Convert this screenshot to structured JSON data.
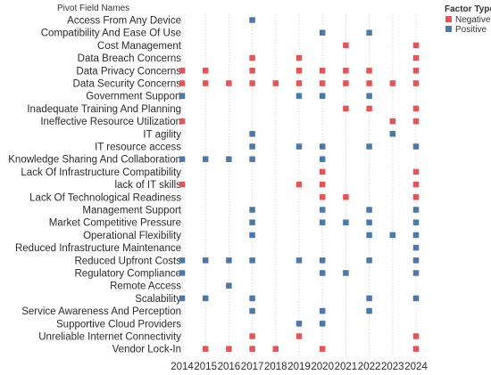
{
  "chart_data": {
    "type": "scatter",
    "row_header": "Pivot Field Names",
    "legend": {
      "title": "Factor Type",
      "position": "top-right",
      "entries": [
        {
          "label": "Negative",
          "color": "#e05759"
        },
        {
          "label": "Positive",
          "color": "#4e79a7"
        }
      ]
    },
    "x": [
      2014,
      2015,
      2016,
      2017,
      2018,
      2019,
      2020,
      2021,
      2022,
      2023,
      2024
    ],
    "categories": [
      "Access From Any Device",
      "Compatibility And Ease Of Use",
      "Cost Management",
      "Data Breach Concerns",
      "Data Privacy Concerns",
      "Data Security Concerns",
      "Government Support",
      "Inadequate Training And Planning",
      "Ineffective Resource Utilization",
      "IT agility",
      "IT resource access",
      "Knowledge Sharing And Collaboration",
      "Lack Of Infrastructure Compatibility",
      "lack of  IT skills",
      "Lack Of Technological Readiness",
      "Management Support",
      "Market Competitive Pressure",
      "Operational Flexibility",
      "Reduced Infrastructure Maintenance",
      "Reduced Upfront Costs",
      "Regulatory Compliance",
      "Remote Access",
      "Scalability",
      "Service Awareness And Perception",
      "Supportive Cloud Providers",
      "Unreliable Internet Connectivity",
      "Vendor Lock-In"
    ],
    "series": [
      {
        "name": "Negative",
        "color": "#e05759",
        "points": [
          {
            "y": "Cost Management",
            "x": [
              2021,
              2024
            ]
          },
          {
            "y": "Data Breach Concerns",
            "x": [
              2017,
              2019,
              2024
            ]
          },
          {
            "y": "Data Privacy Concerns",
            "x": [
              2014,
              2015,
              2017,
              2019,
              2020,
              2021,
              2022,
              2024
            ]
          },
          {
            "y": "Data Security Concerns",
            "x": [
              2014,
              2015,
              2016,
              2017,
              2018,
              2019,
              2020,
              2021,
              2022,
              2023,
              2024
            ]
          },
          {
            "y": "Inadequate Training And Planning",
            "x": [
              2021,
              2022,
              2024
            ]
          },
          {
            "y": "Ineffective Resource Utilization",
            "x": [
              2014,
              2023,
              2024
            ]
          },
          {
            "y": "Lack Of Infrastructure Compatibility",
            "x": [
              2020,
              2024
            ]
          },
          {
            "y": "lack of  IT skills",
            "x": [
              2014,
              2019,
              2020,
              2024
            ]
          },
          {
            "y": "Lack Of Technological Readiness",
            "x": [
              2020,
              2021,
              2024
            ]
          },
          {
            "y": "Unreliable Internet Connectivity",
            "x": [
              2017,
              2019,
              2024
            ]
          },
          {
            "y": "Vendor Lock-In",
            "x": [
              2015,
              2016,
              2017,
              2018,
              2020,
              2024
            ]
          }
        ]
      },
      {
        "name": "Positive",
        "color": "#4e79a7",
        "points": [
          {
            "y": "Access From Any Device",
            "x": [
              2017
            ]
          },
          {
            "y": "Compatibility And Ease Of Use",
            "x": [
              2020,
              2022
            ]
          },
          {
            "y": "Government Support",
            "x": [
              2014,
              2019,
              2020,
              2022
            ]
          },
          {
            "y": "IT agility",
            "x": [
              2017,
              2023
            ]
          },
          {
            "y": "IT resource access",
            "x": [
              2017,
              2019,
              2020,
              2022,
              2024
            ]
          },
          {
            "y": "Knowledge Sharing And Collaboration",
            "x": [
              2014,
              2015,
              2016,
              2017,
              2020
            ]
          },
          {
            "y": "Management Support",
            "x": [
              2017,
              2020,
              2022,
              2024
            ]
          },
          {
            "y": "Market Competitive Pressure",
            "x": [
              2017,
              2020,
              2021,
              2022,
              2024
            ]
          },
          {
            "y": "Operational Flexibility",
            "x": [
              2017,
              2022,
              2023,
              2024
            ]
          },
          {
            "y": "Reduced Infrastructure Maintenance",
            "x": [
              2024
            ]
          },
          {
            "y": "Reduced Upfront Costs",
            "x": [
              2014,
              2015,
              2016,
              2017,
              2019,
              2020,
              2022,
              2024
            ]
          },
          {
            "y": "Regulatory Compliance",
            "x": [
              2014,
              2020,
              2021,
              2024
            ]
          },
          {
            "y": "Remote Access",
            "x": [
              2016
            ]
          },
          {
            "y": "Scalability",
            "x": [
              2014,
              2015,
              2017,
              2022,
              2024
            ]
          },
          {
            "y": "Service Awareness And Perception",
            "x": [
              2017,
              2020,
              2022
            ]
          },
          {
            "y": "Supportive Cloud Providers",
            "x": [
              2019,
              2020
            ]
          }
        ]
      }
    ],
    "grid": "vertical dotted"
  }
}
